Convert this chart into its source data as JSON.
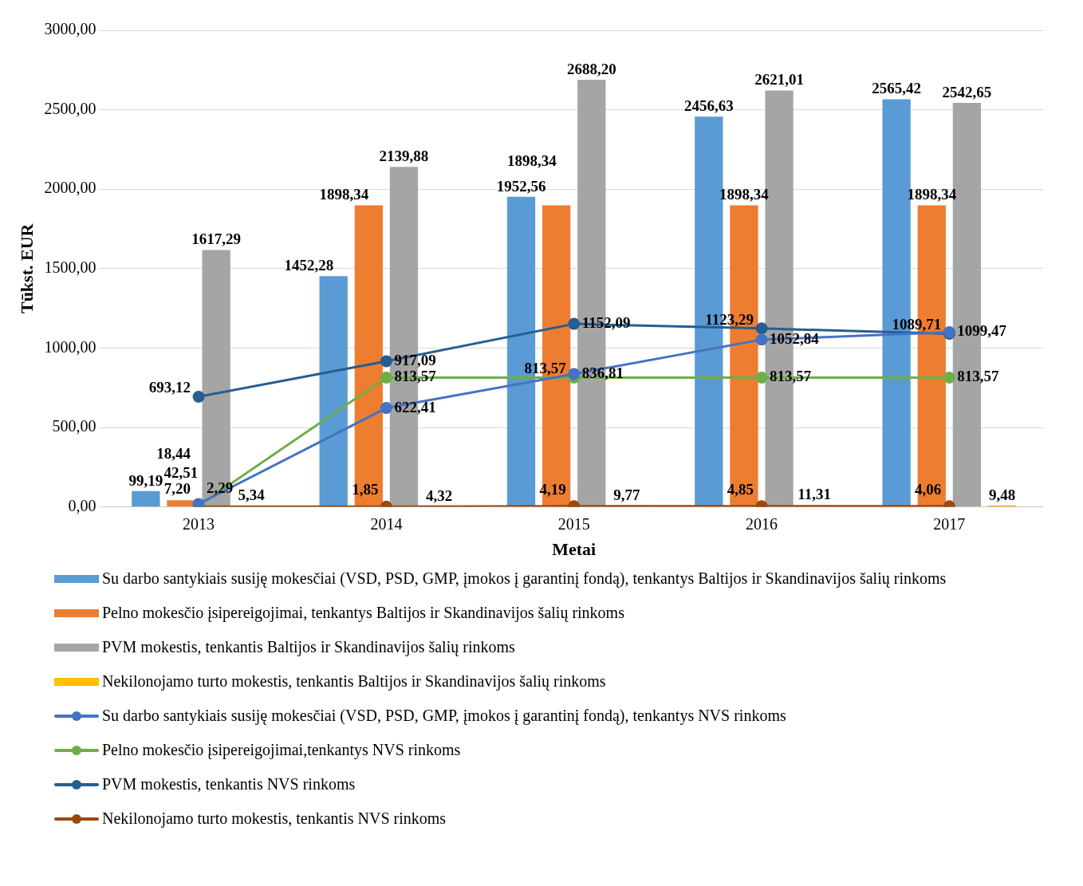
{
  "chart_data": {
    "type": "bar",
    "xlabel": "Metai",
    "ylabel": "Tūkst. EUR",
    "categories": [
      "2013",
      "2014",
      "2015",
      "2016",
      "2017"
    ],
    "ylim": [
      0,
      3000
    ],
    "yticks": [
      {
        "value": 0,
        "label": "0,00"
      },
      {
        "value": 500,
        "label": "500,00"
      },
      {
        "value": 1000,
        "label": "1000,00"
      },
      {
        "value": 1500,
        "label": "1500,00"
      },
      {
        "value": 2000,
        "label": "2000,00"
      },
      {
        "value": 2500,
        "label": "2500,00"
      },
      {
        "value": 3000,
        "label": "3000,00"
      }
    ],
    "grid": "y",
    "legend": "bottom",
    "marker": "circle",
    "series": [
      {
        "name": "Su darbo santykiais susiję mokesčiai (VSD, PSD, GMP, įmokos į garantinį fondą), tenkantys Baltijos ir Skandinavijos šalių rinkoms",
        "color": "#5b9bd5",
        "values": [
          99.19,
          1452.28,
          1952.56,
          2456.63,
          2565.42
        ],
        "value_labels": [
          "99,19",
          "1452,28",
          "1952,56",
          "2456,63",
          "2565,42"
        ]
      },
      {
        "name": "Pelno mokesčio įsipereigojimai, tenkantys Baltijos ir Skandinavijos šalių rinkoms",
        "color": "#ed7d31",
        "values": [
          42.51,
          1898.34,
          1898.34,
          1898.34,
          1898.34
        ],
        "value_labels": [
          "42,51",
          "1898,34",
          "1898,34",
          "1898,34",
          "1898,34"
        ]
      },
      {
        "name": "PVM mokestis, tenkantis Baltijos ir Skandinavijos šalių rinkoms",
        "color": "#a5a5a5",
        "values": [
          1617.29,
          2139.88,
          2688.2,
          2621.01,
          2542.65
        ],
        "value_labels": [
          "1617,29",
          "2139,88",
          "2688,20",
          "2621,01",
          "2542,65"
        ]
      },
      {
        "name": "Nekilonojamo turto mokestis, tenkantis Baltijos ir Skandinavijos šalių rinkoms",
        "color": "#ffc000",
        "values": [
          5.34,
          4.32,
          9.77,
          11.31,
          9.48
        ],
        "value_labels": [
          "5,34",
          "4,32",
          "9,77",
          "11,31",
          "9,48"
        ]
      },
      {
        "name": "Su darbo santykiais susiję mokesčiai (VSD, PSD, GMP, įmokos į garantinį fondą), tenkantys NVS rinkoms",
        "type": "line",
        "color": "#4472c4",
        "values": [
          18.44,
          622.41,
          836.81,
          1052.84,
          1099.47
        ],
        "value_labels": [
          "18,44",
          "622,41",
          "836,81",
          "1052,84",
          "1099,47"
        ]
      },
      {
        "name": "Pelno mokesčio įsipereigojimai,tenkantys NVS rinkoms",
        "type": "line",
        "color": "#70ad47",
        "values": [
          7.2,
          813.57,
          813.57,
          813.57,
          813.57
        ],
        "value_labels": [
          "7,20",
          "813,57",
          "813,57",
          "813,57",
          "813,57"
        ]
      },
      {
        "name": "PVM mokestis, tenkantis NVS rinkoms",
        "type": "line",
        "color": "#255e91",
        "values": [
          693.12,
          917.09,
          1152.09,
          1123.29,
          1089.71
        ],
        "value_labels": [
          "693,12",
          "917,09",
          "1152,09",
          "1123,29",
          "1089,71"
        ]
      },
      {
        "name": "Nekilonojamo turto mokestis, tenkantis NVS rinkoms",
        "type": "line",
        "color": "#9e480e",
        "values": [
          2.29,
          1.85,
          4.19,
          4.85,
          4.06
        ],
        "value_labels": [
          "2,29",
          "1,85",
          "4,19",
          "4,85",
          "4,06"
        ]
      }
    ]
  }
}
